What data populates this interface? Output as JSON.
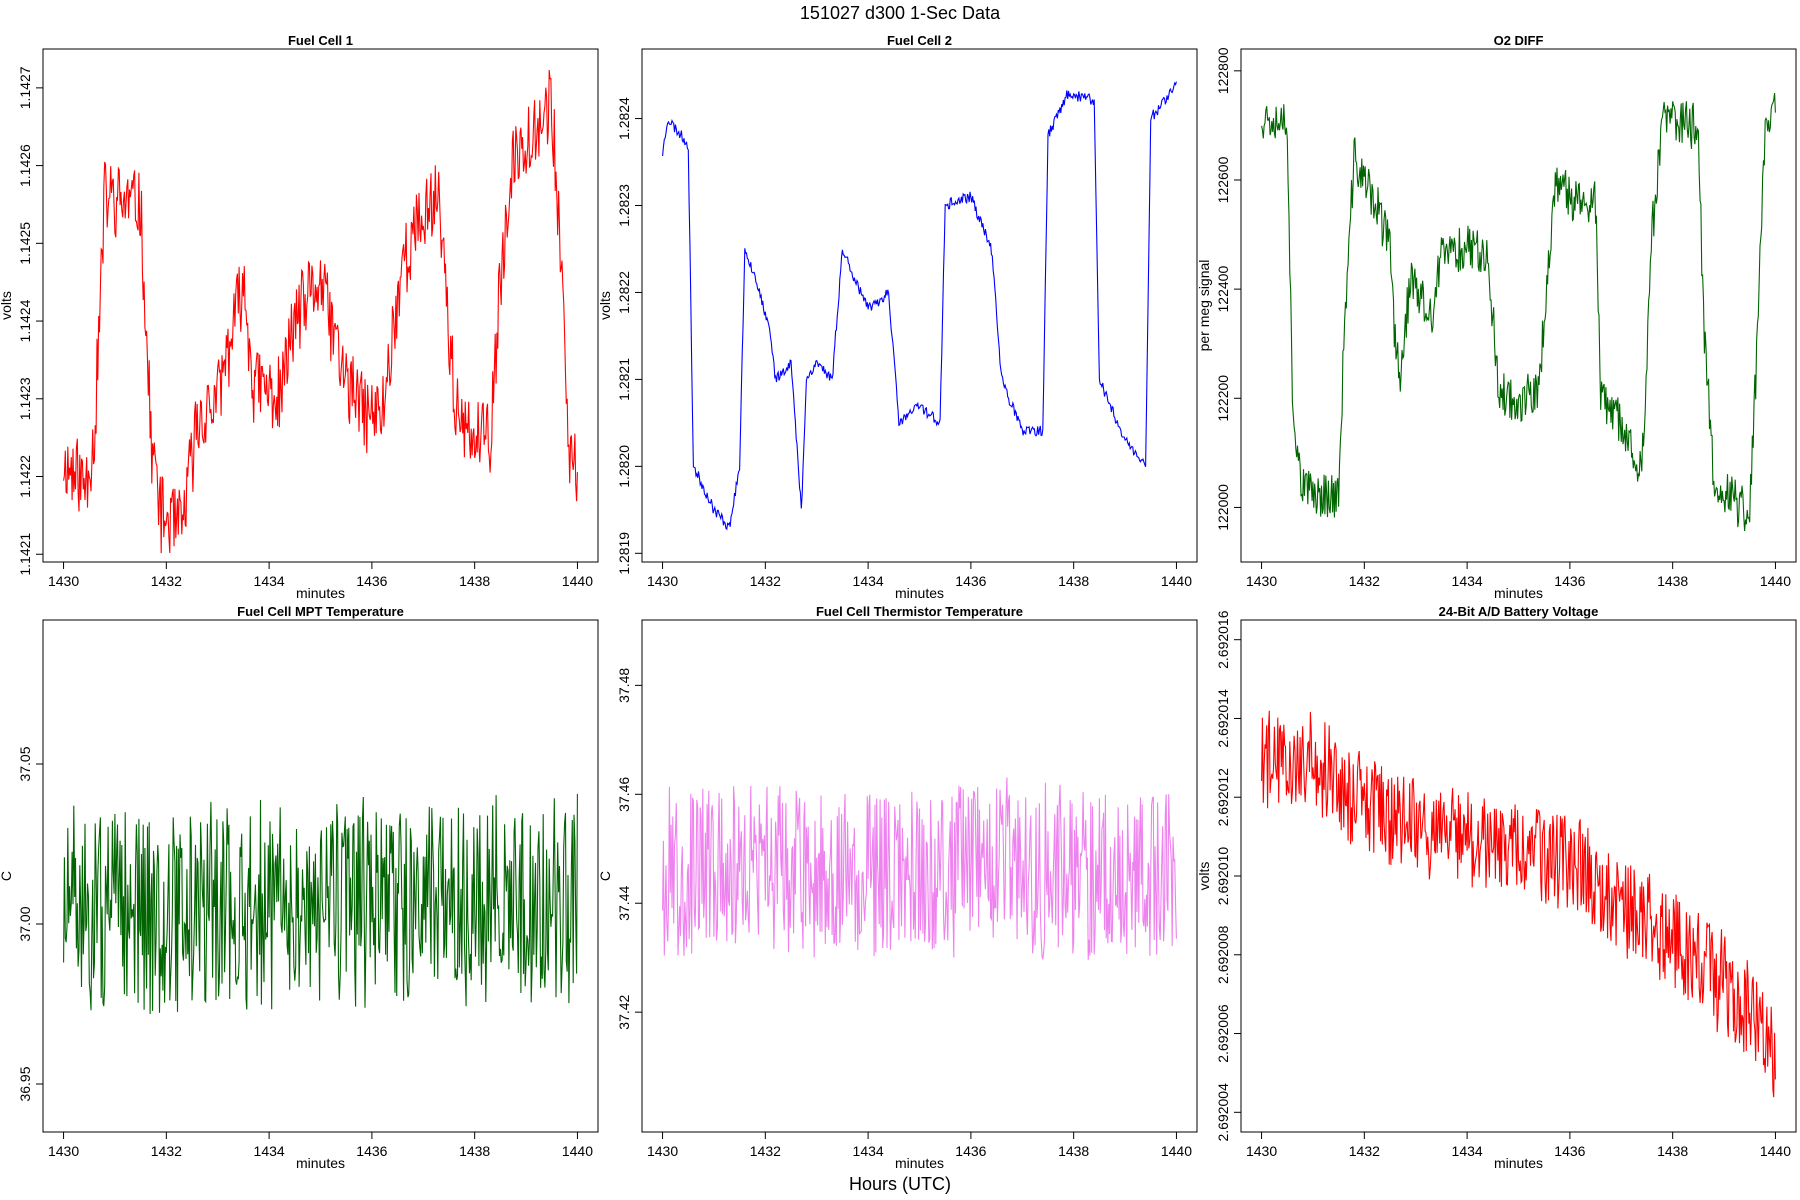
{
  "figure": {
    "title": "151027   d300   1-Sec Data",
    "xlabel": "Hours (UTC)"
  },
  "chart_data": [
    {
      "type": "line",
      "title": "Fuel Cell 1",
      "xlabel": "minutes",
      "ylabel": "volts",
      "color": "#ff0000",
      "xlim": [
        1429.6,
        1440.4
      ],
      "ylim": [
        1.14209,
        1.14275
      ],
      "x_ticks": [
        1430,
        1432,
        1434,
        1436,
        1438,
        1440
      ],
      "y_ticks": [
        1.1421,
        1.1422,
        1.1423,
        1.1424,
        1.1425,
        1.1426,
        1.1427
      ],
      "y_tick_labels": [
        "1.1421",
        "1.1422",
        "1.1423",
        "1.1424",
        "1.1425",
        "1.1426",
        "1.1427"
      ],
      "segments": [
        [
          1430.0,
          1.14222
        ],
        [
          1430.4,
          1.14219
        ],
        [
          1430.6,
          1.14225
        ],
        [
          1430.8,
          1.14256
        ],
        [
          1431.5,
          1.14255
        ],
        [
          1431.7,
          1.14225
        ],
        [
          1431.9,
          1.14215
        ],
        [
          1432.3,
          1.14213
        ],
        [
          1432.6,
          1.14227
        ],
        [
          1433.0,
          1.1423
        ],
        [
          1433.5,
          1.14245
        ],
        [
          1433.7,
          1.14232
        ],
        [
          1434.2,
          1.1423
        ],
        [
          1434.5,
          1.1424
        ],
        [
          1435.0,
          1.14245
        ],
        [
          1435.2,
          1.1424
        ],
        [
          1435.5,
          1.14232
        ],
        [
          1435.9,
          1.14228
        ],
        [
          1436.2,
          1.14228
        ],
        [
          1436.6,
          1.14248
        ],
        [
          1437.3,
          1.14257
        ],
        [
          1437.6,
          1.1423
        ],
        [
          1437.8,
          1.14225
        ],
        [
          1438.2,
          1.14225
        ],
        [
          1438.3,
          1.14225
        ],
        [
          1438.5,
          1.14245
        ],
        [
          1438.8,
          1.14262
        ],
        [
          1439.5,
          1.14268
        ],
        [
          1439.7,
          1.14245
        ],
        [
          1439.8,
          1.14225
        ],
        [
          1440.0,
          1.1422
        ]
      ],
      "noise": 3.5e-05,
      "seed": 11
    },
    {
      "type": "line",
      "title": "Fuel Cell 2",
      "xlabel": "minutes",
      "ylabel": "volts",
      "color": "#0000ff",
      "xlim": [
        1429.6,
        1440.4
      ],
      "ylim": [
        1.28189,
        1.28248
      ],
      "x_ticks": [
        1430,
        1432,
        1434,
        1436,
        1438,
        1440
      ],
      "y_ticks": [
        1.2819,
        1.282,
        1.2821,
        1.2822,
        1.2823,
        1.2824
      ],
      "y_tick_labels": [
        "1.2819",
        "1.2820",
        "1.2821",
        "1.2822",
        "1.2823",
        "1.2824"
      ],
      "segments": [
        [
          1430.0,
          1.28236
        ],
        [
          1430.1,
          1.2824
        ],
        [
          1430.5,
          1.28237
        ],
        [
          1430.6,
          1.282
        ],
        [
          1431.0,
          1.28195
        ],
        [
          1431.3,
          1.28193
        ],
        [
          1431.5,
          1.282
        ],
        [
          1431.6,
          1.28225
        ],
        [
          1431.8,
          1.28222
        ],
        [
          1432.1,
          1.28215
        ],
        [
          1432.2,
          1.2821
        ],
        [
          1432.5,
          1.28212
        ],
        [
          1432.7,
          1.28195
        ],
        [
          1432.8,
          1.2821
        ],
        [
          1433.0,
          1.28212
        ],
        [
          1433.3,
          1.2821
        ],
        [
          1433.5,
          1.28225
        ],
        [
          1434.0,
          1.28218
        ],
        [
          1434.4,
          1.2822
        ],
        [
          1434.6,
          1.28205
        ],
        [
          1435.0,
          1.28207
        ],
        [
          1435.4,
          1.28205
        ],
        [
          1435.5,
          1.2823
        ],
        [
          1436.0,
          1.28231
        ],
        [
          1436.4,
          1.28225
        ],
        [
          1436.6,
          1.2821
        ],
        [
          1437.0,
          1.28204
        ],
        [
          1437.4,
          1.28204
        ],
        [
          1437.5,
          1.28238
        ],
        [
          1437.9,
          1.28243
        ],
        [
          1438.4,
          1.28242
        ],
        [
          1438.5,
          1.2821
        ],
        [
          1439.0,
          1.28203
        ],
        [
          1439.4,
          1.282
        ],
        [
          1439.5,
          1.2824
        ],
        [
          1440.0,
          1.28244
        ]
      ],
      "noise": 4.5e-06,
      "seed": 23
    },
    {
      "type": "line",
      "title": "O2 DIFF",
      "xlabel": "minutes",
      "ylabel": "per meg signal",
      "color": "#006400",
      "xlim": [
        1429.6,
        1440.4
      ],
      "ylim": [
        121900,
        122840
      ],
      "x_ticks": [
        1430,
        1432,
        1434,
        1436,
        1438,
        1440
      ],
      "y_ticks": [
        122000,
        122200,
        122400,
        122600,
        122800
      ],
      "y_tick_labels": [
        "122000",
        "122200",
        "122400",
        "122600",
        "122800"
      ],
      "segments": [
        [
          1430.0,
          122720
        ],
        [
          1430.5,
          122710
        ],
        [
          1430.6,
          122200
        ],
        [
          1430.8,
          122030
        ],
        [
          1431.5,
          122020
        ],
        [
          1431.6,
          122300
        ],
        [
          1431.8,
          122640
        ],
        [
          1432.2,
          122560
        ],
        [
          1432.5,
          122480
        ],
        [
          1432.6,
          122300
        ],
        [
          1432.7,
          122250
        ],
        [
          1432.9,
          122420
        ],
        [
          1433.3,
          122340
        ],
        [
          1433.5,
          122460
        ],
        [
          1434.0,
          122480
        ],
        [
          1434.4,
          122470
        ],
        [
          1434.6,
          122220
        ],
        [
          1435.0,
          122190
        ],
        [
          1435.4,
          122210
        ],
        [
          1435.5,
          122350
        ],
        [
          1435.7,
          122580
        ],
        [
          1436.3,
          122560
        ],
        [
          1436.5,
          122560
        ],
        [
          1436.6,
          122200
        ],
        [
          1437.0,
          122150
        ],
        [
          1437.4,
          122070
        ],
        [
          1437.6,
          122500
        ],
        [
          1437.8,
          122710
        ],
        [
          1438.5,
          122700
        ],
        [
          1438.6,
          122350
        ],
        [
          1438.8,
          122050
        ],
        [
          1439.3,
          122000
        ],
        [
          1439.5,
          121990
        ],
        [
          1439.6,
          122200
        ],
        [
          1439.8,
          122700
        ],
        [
          1440.0,
          122740
        ]
      ],
      "noise": 30,
      "seed": 37
    },
    {
      "type": "line",
      "title": "Fuel Cell MPT Temperature",
      "xlabel": "minutes",
      "ylabel": "C",
      "color": "#006400",
      "xlim": [
        1429.6,
        1440.4
      ],
      "ylim": [
        36.935,
        37.095
      ],
      "x_ticks": [
        1430,
        1432,
        1434,
        1436,
        1438,
        1440
      ],
      "y_ticks": [
        36.95,
        37.0,
        37.05
      ],
      "y_tick_labels": [
        "36.95",
        "37.00",
        "37.05"
      ],
      "segments": [
        [
          1430.0,
          37.003
        ],
        [
          1440.0,
          37.008
        ]
      ],
      "noise": 0.022,
      "seed": 51
    },
    {
      "type": "line",
      "title": "Fuel Cell Thermistor Temperature",
      "xlabel": "minutes",
      "ylabel": "C",
      "color": "#ee82ee",
      "xlim": [
        1429.6,
        1440.4
      ],
      "ylim": [
        37.398,
        37.492
      ],
      "x_ticks": [
        1430,
        1432,
        1434,
        1436,
        1438,
        1440
      ],
      "y_ticks": [
        37.42,
        37.44,
        37.46,
        37.48
      ],
      "y_tick_labels": [
        "37.42",
        "37.44",
        "37.46",
        "37.48"
      ],
      "segments": [
        [
          1430.0,
          37.446
        ],
        [
          1440.0,
          37.446
        ]
      ],
      "noise": 0.011,
      "seed": 67
    },
    {
      "type": "line",
      "title": "24-Bit A/D Battery Voltage",
      "xlabel": "minutes",
      "ylabel": "volts",
      "color": "#ff0000",
      "xlim": [
        1429.6,
        1440.4
      ],
      "ylim": [
        2.6920035,
        2.6920165
      ],
      "x_ticks": [
        1430,
        1432,
        1434,
        1436,
        1438,
        1440
      ],
      "y_ticks": [
        2.692004,
        2.692006,
        2.692008,
        2.69201,
        2.692012,
        2.692014,
        2.692016
      ],
      "y_tick_labels": [
        "2.692004",
        "2.692006",
        "2.692008",
        "2.692010",
        "2.692012",
        "2.692014",
        "2.692016"
      ],
      "segments": [
        [
          1430.0,
          2.692013
        ],
        [
          1431.0,
          2.692013
        ],
        [
          1432.0,
          2.6920118
        ],
        [
          1433.0,
          2.6920113
        ],
        [
          1434.0,
          2.692011
        ],
        [
          1435.0,
          2.6920107
        ],
        [
          1436.0,
          2.6920103
        ],
        [
          1437.0,
          2.6920093
        ],
        [
          1438.0,
          2.6920083
        ],
        [
          1439.0,
          2.6920073
        ],
        [
          1439.6,
          2.6920062
        ],
        [
          1440.0,
          2.6920055
        ]
      ],
      "noise": 9e-07,
      "seed": 79
    }
  ]
}
